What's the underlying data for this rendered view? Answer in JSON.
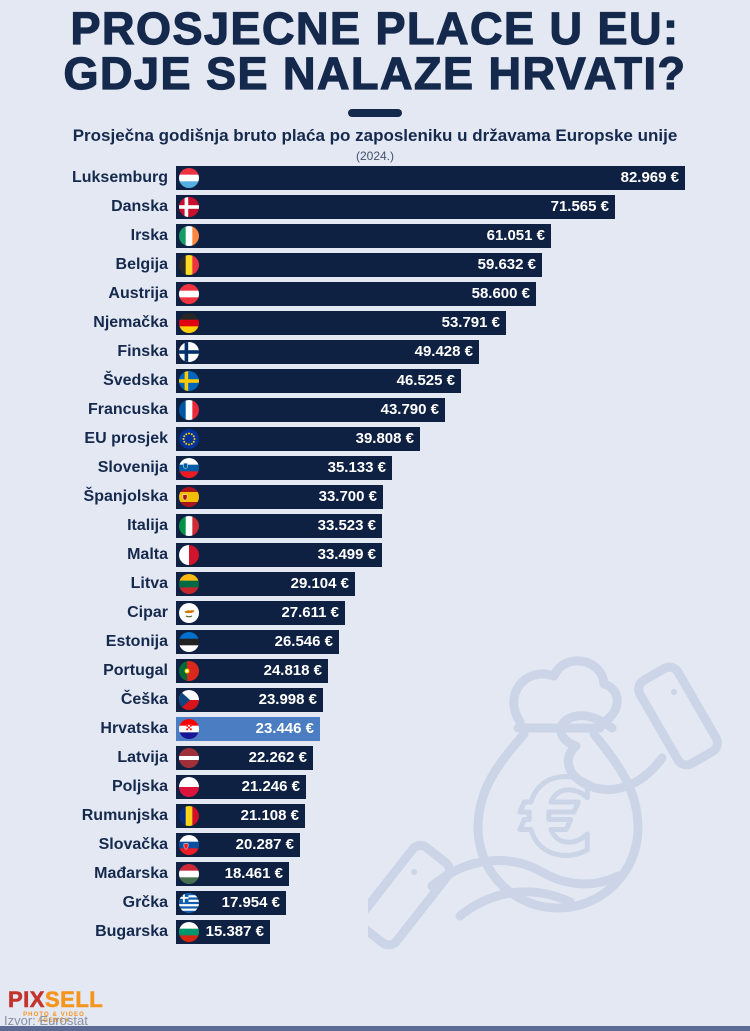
{
  "header": {
    "title_line1": "PROSJECNE PLACE U EU:",
    "title_line2": "GDJE SE NALAZE HRVATI?",
    "subtitle": "Prosječna godišnja bruto plaća po zaposleniku u državama Europske unije",
    "year_note": "(2024.)"
  },
  "chart_data": {
    "type": "bar",
    "orientation": "horizontal",
    "title": "PROSJECNE PLACE U EU: GDJE SE NALAZE HRVATI?",
    "subtitle": "Prosječna godišnja bruto plaća po zaposleniku u državama Europske unije",
    "year": "2024",
    "unit": "€",
    "xlim": [
      0,
      82969
    ],
    "highlight_category": "Hrvatska",
    "legend": "none",
    "grid": false,
    "categories": [
      "Luksemburg",
      "Danska",
      "Irska",
      "Belgija",
      "Austrija",
      "Njemačka",
      "Finska",
      "Švedska",
      "Francuska",
      "EU prosjek",
      "Slovenija",
      "Španjolska",
      "Italija",
      "Malta",
      "Litva",
      "Cipar",
      "Estonija",
      "Portugal",
      "Češka",
      "Hrvatska",
      "Latvija",
      "Poljska",
      "Rumunjska",
      "Slovačka",
      "Mađarska",
      "Grčka",
      "Bugarska"
    ],
    "values": [
      82969,
      71565,
      61051,
      59632,
      58600,
      53791,
      49428,
      46525,
      43790,
      39808,
      35133,
      33700,
      33523,
      33499,
      29104,
      27611,
      26546,
      24818,
      23998,
      23446,
      22262,
      21246,
      21108,
      20287,
      18461,
      17954,
      15387
    ],
    "value_labels": [
      "82.969 €",
      "71.565 €",
      "61.051 €",
      "59.632 €",
      "58.600 €",
      "53.791 €",
      "49.428 €",
      "46.525 €",
      "43.790 €",
      "39.808 €",
      "35.133 €",
      "33.700 €",
      "33.523 €",
      "33.499 €",
      "29.104 €",
      "27.611 €",
      "26.546 €",
      "24.818 €",
      "23.998 €",
      "23.446 €",
      "22.262 €",
      "21.246 €",
      "21.108 €",
      "20.287 €",
      "18.461 €",
      "17.954 €",
      "15.387 €"
    ],
    "flags": [
      {
        "t": "h",
        "c": [
          "#ef3340",
          "#ffffff",
          "#54b0e2"
        ]
      },
      {
        "t": "cross",
        "bg": "#c8102e",
        "cr": "#ffffff"
      },
      {
        "t": "v",
        "c": [
          "#169b62",
          "#ffffff",
          "#ff883e"
        ]
      },
      {
        "t": "v",
        "c": [
          "#2d2926",
          "#fdda25",
          "#ef3340"
        ]
      },
      {
        "t": "h",
        "c": [
          "#ef3340",
          "#ffffff",
          "#ef3340"
        ]
      },
      {
        "t": "h",
        "c": [
          "#262626",
          "#e1000f",
          "#ffce00"
        ]
      },
      {
        "t": "cross",
        "bg": "#ffffff",
        "cr": "#002f6c"
      },
      {
        "t": "cross",
        "bg": "#0065bd",
        "cr": "#fecb00"
      },
      {
        "t": "v",
        "c": [
          "#0055a4",
          "#ffffff",
          "#ed2939"
        ]
      },
      {
        "t": "eu",
        "bg": "#003399",
        "star": "#ffcc00"
      },
      {
        "t": "h",
        "c": [
          "#ffffff",
          "#005da4",
          "#ed1c24"
        ],
        "ov": "crest",
        "oc": "#005da4",
        "ox": 6.5,
        "oy": 7.5
      },
      {
        "t": "h",
        "c": [
          "#aa151b",
          "#f1bf00",
          "#aa151b"
        ],
        "w": [
          1,
          2,
          1
        ],
        "ov": "crest",
        "oc": "#aa151b",
        "ox": 6,
        "oy": 10
      },
      {
        "t": "v",
        "c": [
          "#009246",
          "#ffffff",
          "#ce2b37"
        ]
      },
      {
        "t": "v",
        "c": [
          "#ffffff",
          "#cf142b"
        ]
      },
      {
        "t": "h",
        "c": [
          "#fdb913",
          "#006a44",
          "#c1272d"
        ]
      },
      {
        "t": "cyprus",
        "bg": "#ffffff",
        "land": "#d47600",
        "branch": "#4e5b31"
      },
      {
        "t": "h",
        "c": [
          "#0072ce",
          "#222222",
          "#ffffff"
        ]
      },
      {
        "t": "v",
        "c": [
          "#046a38",
          "#da291c"
        ],
        "w": [
          2,
          3
        ],
        "ov": "disc",
        "oc": "#ffe900",
        "ox": 8,
        "oy": 10
      },
      {
        "t": "czech",
        "top": "#ffffff",
        "bot": "#d7141a",
        "tri": "#11457e"
      },
      {
        "t": "h",
        "c": [
          "#ff0000",
          "#ffffff",
          "#171796"
        ],
        "ov": "checker",
        "oc": "#ff0000",
        "ox": 10,
        "oy": 8.5
      },
      {
        "t": "h",
        "c": [
          "#9e3039",
          "#ffffff",
          "#9e3039"
        ],
        "w": [
          2,
          1,
          2
        ]
      },
      {
        "t": "h",
        "c": [
          "#ffffff",
          "#dc143c"
        ]
      },
      {
        "t": "v",
        "c": [
          "#002b7f",
          "#fcd116",
          "#ce1126"
        ]
      },
      {
        "t": "h",
        "c": [
          "#ffffff",
          "#0b4ea2",
          "#ee1c25"
        ],
        "ov": "crest",
        "oc": "#ee1c25",
        "ox": 7,
        "oy": 11
      },
      {
        "t": "h",
        "c": [
          "#ce2939",
          "#ffffff",
          "#477050"
        ]
      },
      {
        "t": "greece",
        "bg": "#0d5eaf",
        "fg": "#ffffff"
      },
      {
        "t": "h",
        "c": [
          "#ffffff",
          "#00966e",
          "#d62612"
        ]
      }
    ]
  },
  "footer": {
    "logo_pix": "PIX",
    "logo_sell": "SELL",
    "logo_tagline": "PHOTO & VIDEO AGENCY",
    "source": "Izvor: Eurostat"
  },
  "colors": {
    "background": "#e3e8f3",
    "bar": "#0f2142",
    "highlight_bar": "#4a7dc2",
    "title_text": "#15294d",
    "value_text": "#ffffff",
    "watermark": "#ccd5e7",
    "logo_red": "#c2342c",
    "logo_orange": "#f7941d",
    "source_text": "#8792a6",
    "bottom_strip": "#5b6b95"
  }
}
